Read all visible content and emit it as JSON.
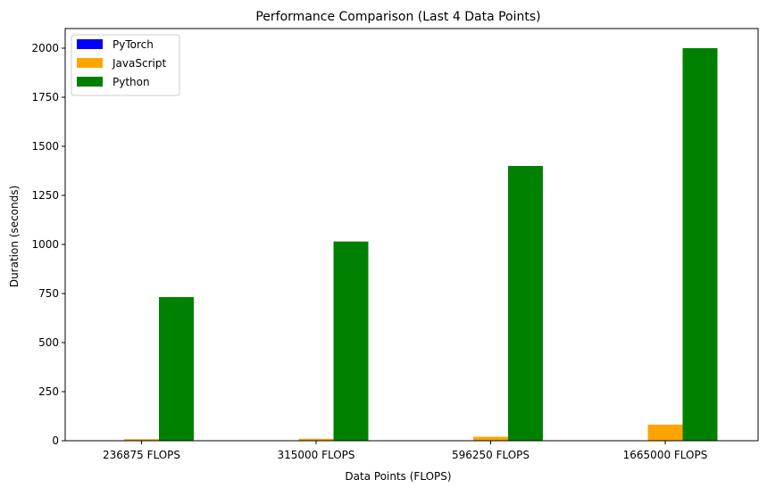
{
  "chart_data": {
    "type": "bar",
    "title": "Performance Comparison (Last 4 Data Points)",
    "xlabel": "Data Points (FLOPS)",
    "ylabel": "Duration (seconds)",
    "categories": [
      "236875 FLOPS",
      "315000 FLOPS",
      "596250 FLOPS",
      "1665000 FLOPS"
    ],
    "series": [
      {
        "name": "PyTorch",
        "color": "#0000ff",
        "values": [
          0.5,
          0.5,
          0.6,
          0.9
        ]
      },
      {
        "name": "JavaScript",
        "color": "#ffa500",
        "values": [
          8,
          10,
          20,
          82
        ]
      },
      {
        "name": "Python",
        "color": "#008000",
        "values": [
          732,
          1015,
          1400,
          2000
        ]
      }
    ],
    "ylim": [
      0,
      2100
    ],
    "yticks": [
      0,
      250,
      500,
      750,
      1000,
      1250,
      1500,
      1750,
      2000
    ],
    "legend_position": "top-left",
    "grid": false
  }
}
